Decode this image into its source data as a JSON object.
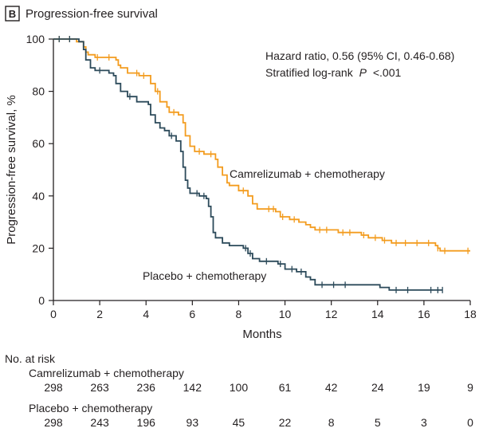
{
  "chart_data": {
    "type": "line",
    "panel_label": "B",
    "title": "Progression-free survival",
    "xlabel": "Months",
    "ylabel": "Progression-free survival, %",
    "xlim": [
      0,
      18
    ],
    "ylim": [
      0,
      100
    ],
    "x_ticks": [
      0,
      2,
      4,
      6,
      8,
      10,
      12,
      14,
      16,
      18
    ],
    "y_ticks": [
      0,
      20,
      40,
      60,
      80,
      100
    ],
    "grid": false,
    "annotations": [
      "Hazard ratio, 0.56 (95% CI, 0.46-0.68)",
      "Stratified log-rank",
      "P",
      "<.001"
    ],
    "series": [
      {
        "name": "Camrelizumab + chemotherapy",
        "color": "#f39c1f",
        "points": [
          [
            0,
            100
          ],
          [
            0.6,
            100
          ],
          [
            1.0,
            99
          ],
          [
            1.3,
            97
          ],
          [
            1.4,
            95
          ],
          [
            1.5,
            94
          ],
          [
            1.8,
            93
          ],
          [
            2.2,
            93
          ],
          [
            2.7,
            92
          ],
          [
            2.8,
            90
          ],
          [
            2.9,
            89
          ],
          [
            3.2,
            87
          ],
          [
            3.4,
            87
          ],
          [
            3.7,
            86
          ],
          [
            4.1,
            86
          ],
          [
            4.2,
            83
          ],
          [
            4.4,
            80
          ],
          [
            4.6,
            76
          ],
          [
            4.9,
            74
          ],
          [
            5.0,
            72
          ],
          [
            5.4,
            71
          ],
          [
            5.5,
            71
          ],
          [
            5.6,
            68
          ],
          [
            5.7,
            63
          ],
          [
            5.9,
            59
          ],
          [
            6.1,
            57
          ],
          [
            6.5,
            56
          ],
          [
            7.0,
            54
          ],
          [
            7.1,
            51
          ],
          [
            7.3,
            48
          ],
          [
            7.5,
            45
          ],
          [
            7.6,
            44
          ],
          [
            8.0,
            42
          ],
          [
            8.4,
            40
          ],
          [
            8.6,
            37
          ],
          [
            8.8,
            35
          ],
          [
            9.2,
            35
          ],
          [
            9.6,
            34
          ],
          [
            9.8,
            32
          ],
          [
            10.2,
            31
          ],
          [
            10.6,
            30
          ],
          [
            10.9,
            29
          ],
          [
            11.1,
            28
          ],
          [
            11.3,
            27
          ],
          [
            12.0,
            27
          ],
          [
            12.3,
            26
          ],
          [
            13.0,
            26
          ],
          [
            13.3,
            25
          ],
          [
            13.6,
            24
          ],
          [
            14.2,
            23
          ],
          [
            14.6,
            22
          ],
          [
            15.5,
            22
          ],
          [
            16.0,
            22
          ],
          [
            16.5,
            21
          ],
          [
            16.6,
            20
          ],
          [
            16.7,
            19
          ],
          [
            18.0,
            19
          ]
        ],
        "censor_x": [
          0.25,
          0.7,
          1.9,
          2.4,
          3.6,
          3.9,
          4.5,
          5.2,
          6.3,
          6.8,
          8.2,
          9.3,
          9.5,
          9.9,
          10.4,
          11.5,
          11.8,
          12.5,
          12.8,
          13.4,
          13.9,
          14.3,
          14.8,
          15.2,
          15.7,
          16.2,
          16.6,
          16.9,
          17.9
        ]
      },
      {
        "name": "Placebo + chemotherapy",
        "color": "#2c4a5a",
        "points": [
          [
            0,
            100
          ],
          [
            0.6,
            100
          ],
          [
            1.1,
            99
          ],
          [
            1.3,
            96
          ],
          [
            1.4,
            92
          ],
          [
            1.6,
            89
          ],
          [
            1.8,
            88
          ],
          [
            2.4,
            87
          ],
          [
            2.6,
            86
          ],
          [
            2.7,
            83
          ],
          [
            2.9,
            80
          ],
          [
            3.2,
            78
          ],
          [
            3.6,
            76
          ],
          [
            3.9,
            76
          ],
          [
            4.1,
            75
          ],
          [
            4.2,
            71
          ],
          [
            4.4,
            68
          ],
          [
            4.6,
            66
          ],
          [
            4.8,
            65
          ],
          [
            5.0,
            63
          ],
          [
            5.3,
            61
          ],
          [
            5.5,
            57
          ],
          [
            5.6,
            51
          ],
          [
            5.7,
            46
          ],
          [
            5.8,
            43
          ],
          [
            5.9,
            41
          ],
          [
            6.3,
            40
          ],
          [
            6.6,
            39
          ],
          [
            6.7,
            36
          ],
          [
            6.8,
            32
          ],
          [
            6.9,
            26
          ],
          [
            7.0,
            24
          ],
          [
            7.3,
            22
          ],
          [
            7.6,
            21
          ],
          [
            8.0,
            21
          ],
          [
            8.2,
            20
          ],
          [
            8.4,
            18
          ],
          [
            8.6,
            16
          ],
          [
            8.9,
            15
          ],
          [
            9.7,
            14
          ],
          [
            10.0,
            12
          ],
          [
            10.5,
            11
          ],
          [
            10.9,
            9
          ],
          [
            11.1,
            8
          ],
          [
            11.3,
            6
          ],
          [
            13.0,
            6
          ],
          [
            14.1,
            5
          ],
          [
            14.5,
            4
          ],
          [
            16.8,
            4
          ]
        ],
        "censor_x": [
          0.25,
          0.7,
          2.0,
          3.3,
          5.1,
          6.2,
          6.5,
          8.3,
          8.5,
          9.2,
          9.8,
          10.3,
          10.7,
          11.6,
          12.1,
          12.6,
          14.8,
          15.3,
          16.3,
          16.6,
          16.8
        ]
      }
    ],
    "risk_table": {
      "header": "No. at risk",
      "rows": [
        {
          "label": "Camrelizumab + chemotherapy",
          "values": [
            "298",
            "263",
            "236",
            "142",
            "100",
            "61",
            "42",
            "24",
            "19",
            "9"
          ]
        },
        {
          "label": "Placebo + chemotherapy",
          "values": [
            "298",
            "243",
            "196",
            "93",
            "45",
            "22",
            "8",
            "5",
            "3",
            "0"
          ]
        }
      ]
    }
  }
}
